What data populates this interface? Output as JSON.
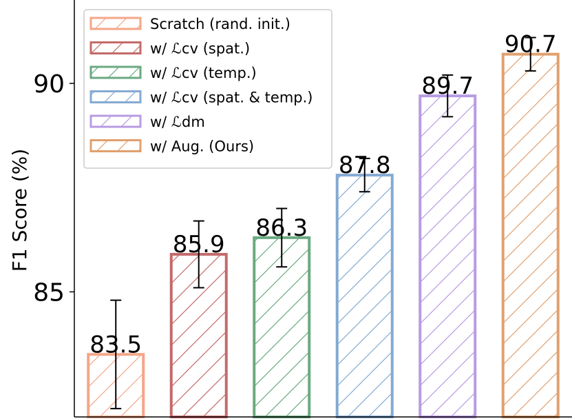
{
  "chart_data": {
    "type": "bar",
    "ylabel": "F1 Score (%)",
    "ylim": [
      82,
      92
    ],
    "yticks": [
      85,
      90
    ],
    "legend": "upper left",
    "series": [
      {
        "name": "Scratch (rand. init.)",
        "color": "#f4a688",
        "values": [
          83.5
        ],
        "errors": [
          1.3
        ]
      },
      {
        "name": "w/ ℒcv (spat.)",
        "color": "#c46a6a",
        "values": [
          85.9
        ],
        "errors": [
          0.8
        ]
      },
      {
        "name": "w/ ℒcv (temp.)",
        "color": "#6aaa80",
        "values": [
          86.3
        ],
        "errors": [
          0.7
        ]
      },
      {
        "name": "w/ ℒcv (spat. & temp.)",
        "color": "#84aad2",
        "values": [
          87.8
        ],
        "errors": [
          0.4
        ]
      },
      {
        "name": "w/ ℒdm",
        "color": "#b89be3",
        "values": [
          89.7
        ],
        "errors": [
          0.5
        ]
      },
      {
        "name": "w/ Aug. (Ours)",
        "color": "#e0a06e",
        "values": [
          90.7
        ],
        "errors": [
          0.4
        ]
      }
    ]
  }
}
